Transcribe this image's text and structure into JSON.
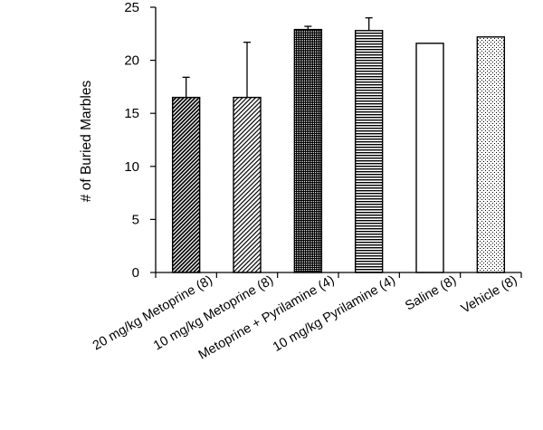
{
  "chart_data": {
    "type": "bar",
    "title": "",
    "xlabel": "",
    "ylabel": "# of Buried Marbles",
    "ylim": [
      0,
      25
    ],
    "yticks": [
      0,
      5,
      10,
      15,
      20,
      25
    ],
    "grid": false,
    "legend": "none",
    "categories": [
      "20 mg/kg Metoprine (8)",
      "10 mg/kg Metoprine (8)",
      "Metoprine + Pyrilamine (4)",
      "10 mg/kg Pyrilamine (4)",
      "Saline (8)",
      "Vehicle (8)"
    ],
    "values": [
      16.5,
      16.5,
      22.9,
      22.8,
      21.6,
      22.2
    ],
    "error_plus": [
      1.9,
      5.2,
      0.3,
      1.2,
      0,
      0
    ],
    "fill_patterns": [
      "dense-diagonal",
      "light-diagonal",
      "dense-dots",
      "horizontal-lines",
      "empty",
      "sparse-dots"
    ],
    "colors": {
      "bar_stroke": "#000000",
      "bar_fill": "#ffffff",
      "axis": "#000000"
    }
  }
}
